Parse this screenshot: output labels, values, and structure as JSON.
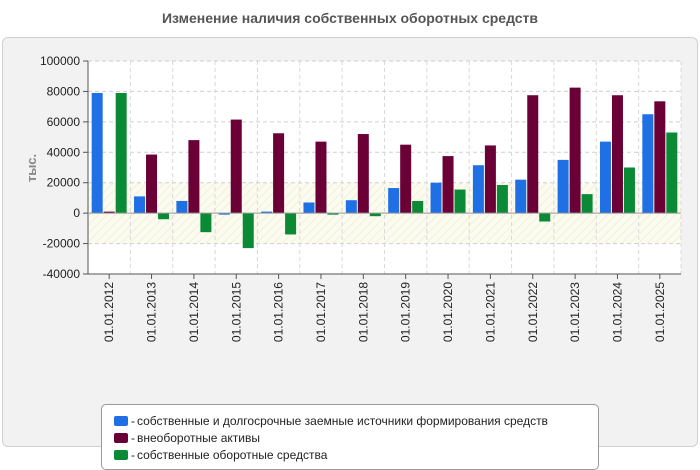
{
  "chart_data": {
    "type": "bar",
    "title": "Изменение наличия собственных оборотных средств",
    "xlabel": "",
    "ylabel": "тыс.",
    "ylim": [
      -40000,
      100000
    ],
    "yticks": [
      "100000",
      "80000",
      "60000",
      "40000",
      "20000",
      "0",
      "-20000",
      "-40000"
    ],
    "categories": [
      "01.01.2012",
      "01.01.2013",
      "01.01.2014",
      "01.01.2015",
      "01.01.2016",
      "01.01.2017",
      "01.01.2018",
      "01.01.2019",
      "01.01.2020",
      "01.01.2021",
      "01.01.2022",
      "01.01.2023",
      "01.01.2024",
      "01.01.2025"
    ],
    "series": [
      {
        "name": "собственные и долгосрочные заемные источники формирования средств",
        "color": "#1f6fe5",
        "values": [
          79000,
          11000,
          8000,
          -500,
          1000,
          7000,
          8500,
          16500,
          20000,
          31500,
          22000,
          35000,
          47000,
          65000
        ]
      },
      {
        "name": "внеоборотные активы",
        "color": "#6b0037",
        "values": [
          1000,
          38500,
          48000,
          61500,
          52500,
          47000,
          52000,
          45000,
          37500,
          44500,
          77500,
          82500,
          77500,
          73500
        ]
      },
      {
        "name": "собственные оборотные средства",
        "color": "#0b8a36",
        "values": [
          79000,
          -4000,
          -12500,
          -23000,
          -14000,
          -1000,
          -2000,
          8000,
          15500,
          18500,
          -5500,
          12500,
          30000,
          53000
        ]
      }
    ],
    "legend_position": "bottom",
    "grid": true
  }
}
